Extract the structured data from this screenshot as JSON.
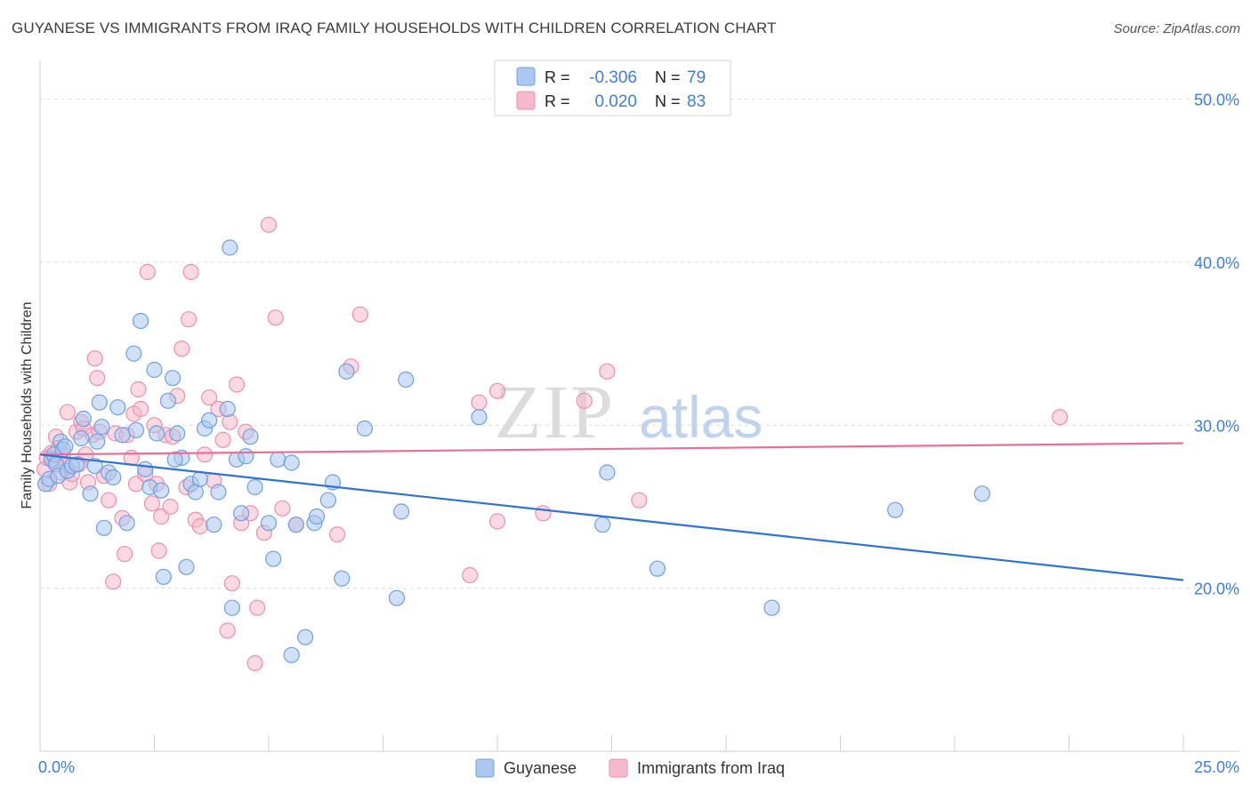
{
  "title": "GUYANESE VS IMMIGRANTS FROM IRAQ FAMILY HOUSEHOLDS WITH CHILDREN CORRELATION CHART",
  "source": "Source: ZipAtlas.com",
  "watermark": {
    "zip": "ZIP",
    "atlas": "atlas"
  },
  "colors": {
    "blue_fill": "#aac8f0",
    "blue_stroke": "#6f9fe0",
    "blue_line": "#2f73d2",
    "pink_fill": "#f6b9cc",
    "pink_stroke": "#ec8fac",
    "pink_line": "#e5709a",
    "axis_label": "#3e7fd6",
    "grid": "#dedede"
  },
  "legend_top": {
    "rows": [
      {
        "r_label": "R =",
        "r_value": "-0.306",
        "n_label": "N =",
        "n_value": "79"
      },
      {
        "r_label": "R =",
        "r_value": "0.020",
        "n_label": "N =",
        "n_value": "83"
      }
    ]
  },
  "chart_data": {
    "type": "scatter",
    "title": "GUYANESE VS IMMIGRANTS FROM IRAQ FAMILY HOUSEHOLDS WITH CHILDREN CORRELATION CHART",
    "xlabel": "",
    "ylabel": "Family Households with Children",
    "xlim": [
      0,
      25
    ],
    "ylim": [
      10,
      52
    ],
    "x_tick_labels": [
      "0.0%",
      "25.0%"
    ],
    "y_ticks": [
      20,
      30,
      40,
      50
    ],
    "y_tick_labels": [
      "20.0%",
      "30.0%",
      "40.0%",
      "50.0%"
    ],
    "legend_position": "bottom-center",
    "grid": true,
    "series": [
      {
        "name": "Guyanese",
        "r": -0.306,
        "n": 79,
        "trend": {
          "x": [
            0,
            25
          ],
          "y": [
            28.2,
            20.5
          ]
        },
        "points": [
          [
            0.12,
            26.4
          ],
          [
            0.2,
            26.7
          ],
          [
            0.25,
            27.9
          ],
          [
            0.3,
            28.2
          ],
          [
            0.35,
            27.6
          ],
          [
            0.4,
            26.9
          ],
          [
            0.45,
            29.0
          ],
          [
            0.5,
            28.5
          ],
          [
            0.6,
            27.2
          ],
          [
            0.7,
            27.5
          ],
          [
            0.8,
            27.6
          ],
          [
            0.9,
            29.2
          ],
          [
            0.95,
            30.4
          ],
          [
            1.1,
            25.8
          ],
          [
            1.2,
            27.5
          ],
          [
            1.3,
            31.4
          ],
          [
            1.35,
            29.9
          ],
          [
            1.4,
            23.7
          ],
          [
            1.5,
            27.1
          ],
          [
            1.6,
            26.8
          ],
          [
            1.7,
            31.1
          ],
          [
            1.8,
            29.4
          ],
          [
            1.9,
            24.0
          ],
          [
            2.05,
            34.4
          ],
          [
            2.1,
            29.7
          ],
          [
            2.2,
            36.4
          ],
          [
            2.3,
            27.3
          ],
          [
            2.4,
            26.2
          ],
          [
            2.5,
            33.4
          ],
          [
            2.55,
            29.5
          ],
          [
            2.65,
            26.0
          ],
          [
            2.7,
            20.7
          ],
          [
            2.8,
            31.5
          ],
          [
            2.9,
            32.9
          ],
          [
            3.0,
            29.5
          ],
          [
            3.1,
            28.0
          ],
          [
            3.2,
            21.3
          ],
          [
            3.3,
            26.4
          ],
          [
            3.4,
            25.9
          ],
          [
            3.5,
            26.7
          ],
          [
            3.6,
            29.8
          ],
          [
            3.7,
            30.3
          ],
          [
            3.8,
            23.9
          ],
          [
            3.9,
            25.9
          ],
          [
            4.1,
            31.0
          ],
          [
            4.15,
            40.9
          ],
          [
            4.2,
            18.8
          ],
          [
            4.3,
            27.9
          ],
          [
            4.4,
            24.6
          ],
          [
            4.5,
            28.1
          ],
          [
            4.6,
            29.3
          ],
          [
            4.7,
            26.2
          ],
          [
            5.0,
            24.0
          ],
          [
            5.1,
            21.8
          ],
          [
            5.2,
            27.9
          ],
          [
            5.5,
            27.7
          ],
          [
            5.6,
            23.9
          ],
          [
            5.8,
            17.0
          ],
          [
            5.5,
            15.9
          ],
          [
            6.0,
            24.0
          ],
          [
            6.05,
            24.4
          ],
          [
            6.3,
            25.4
          ],
          [
            6.4,
            26.5
          ],
          [
            6.6,
            20.6
          ],
          [
            6.7,
            33.3
          ],
          [
            7.1,
            29.8
          ],
          [
            7.8,
            19.4
          ],
          [
            7.9,
            24.7
          ],
          [
            8.0,
            32.8
          ],
          [
            9.6,
            30.5
          ],
          [
            12.3,
            23.9
          ],
          [
            12.4,
            27.1
          ],
          [
            13.5,
            21.2
          ],
          [
            16.0,
            18.8
          ],
          [
            18.7,
            24.8
          ],
          [
            20.6,
            25.8
          ],
          [
            0.55,
            28.7
          ],
          [
            1.25,
            29.0
          ],
          [
            2.95,
            27.9
          ]
        ]
      },
      {
        "name": "Immigrants from Iraq",
        "r": 0.02,
        "n": 83,
        "trend": {
          "x": [
            0,
            25
          ],
          "y": [
            28.2,
            28.9
          ]
        },
        "points": [
          [
            0.1,
            27.3
          ],
          [
            0.15,
            28.0
          ],
          [
            0.2,
            26.4
          ],
          [
            0.25,
            28.3
          ],
          [
            0.3,
            27.8
          ],
          [
            0.35,
            29.3
          ],
          [
            0.4,
            28.6
          ],
          [
            0.5,
            28.2
          ],
          [
            0.55,
            27.5
          ],
          [
            0.6,
            30.8
          ],
          [
            0.65,
            26.5
          ],
          [
            0.7,
            27.0
          ],
          [
            0.8,
            29.6
          ],
          [
            0.85,
            27.6
          ],
          [
            0.9,
            30.2
          ],
          [
            0.95,
            29.8
          ],
          [
            1.0,
            28.2
          ],
          [
            1.05,
            26.5
          ],
          [
            1.15,
            29.4
          ],
          [
            1.2,
            34.1
          ],
          [
            1.25,
            32.9
          ],
          [
            1.3,
            29.6
          ],
          [
            1.4,
            26.9
          ],
          [
            1.5,
            25.4
          ],
          [
            1.6,
            20.4
          ],
          [
            1.65,
            29.5
          ],
          [
            1.8,
            24.3
          ],
          [
            1.85,
            22.1
          ],
          [
            1.9,
            29.4
          ],
          [
            2.0,
            28.0
          ],
          [
            2.05,
            30.7
          ],
          [
            2.1,
            26.4
          ],
          [
            2.15,
            32.2
          ],
          [
            2.2,
            31.0
          ],
          [
            2.3,
            27.0
          ],
          [
            2.35,
            39.4
          ],
          [
            2.45,
            25.2
          ],
          [
            2.5,
            30.0
          ],
          [
            2.55,
            26.4
          ],
          [
            2.6,
            22.3
          ],
          [
            2.65,
            24.4
          ],
          [
            2.75,
            29.4
          ],
          [
            2.85,
            25.0
          ],
          [
            2.9,
            29.3
          ],
          [
            3.0,
            31.8
          ],
          [
            3.1,
            34.7
          ],
          [
            3.2,
            26.2
          ],
          [
            3.25,
            36.5
          ],
          [
            3.3,
            39.4
          ],
          [
            3.4,
            24.2
          ],
          [
            3.5,
            23.8
          ],
          [
            3.6,
            28.2
          ],
          [
            3.7,
            31.7
          ],
          [
            3.8,
            26.6
          ],
          [
            3.9,
            31.0
          ],
          [
            4.0,
            29.1
          ],
          [
            4.1,
            17.4
          ],
          [
            4.15,
            30.2
          ],
          [
            4.2,
            20.3
          ],
          [
            4.3,
            32.5
          ],
          [
            4.4,
            24.0
          ],
          [
            4.5,
            29.6
          ],
          [
            4.6,
            24.6
          ],
          [
            4.7,
            15.4
          ],
          [
            4.75,
            18.8
          ],
          [
            4.9,
            23.4
          ],
          [
            5.0,
            42.3
          ],
          [
            5.15,
            36.6
          ],
          [
            5.3,
            24.9
          ],
          [
            5.6,
            23.9
          ],
          [
            6.5,
            23.3
          ],
          [
            6.8,
            33.6
          ],
          [
            7.0,
            36.8
          ],
          [
            9.4,
            20.8
          ],
          [
            9.6,
            31.4
          ],
          [
            10.0,
            32.1
          ],
          [
            10.0,
            24.1
          ],
          [
            11.0,
            24.6
          ],
          [
            11.9,
            31.5
          ],
          [
            12.4,
            33.3
          ],
          [
            13.1,
            25.4
          ],
          [
            22.3,
            30.5
          ],
          [
            0.45,
            27.1
          ]
        ]
      }
    ]
  },
  "legend_bottom": {
    "items": [
      "Guyanese",
      "Immigrants from Iraq"
    ]
  }
}
